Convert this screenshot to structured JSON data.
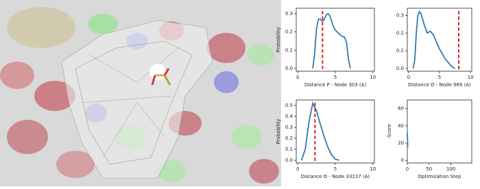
{
  "chart_data": [
    {
      "type": "line",
      "xlabel": "Distance P - Node 303 (A)",
      "ylabel": "Probability",
      "color": "#2f7bb0",
      "reference_x": 3.3,
      "reference_color": "#d62728",
      "x": [
        2.0,
        2.25,
        2.5,
        2.75,
        3.0,
        3.25,
        3.5,
        3.75,
        4.0,
        4.25,
        4.5,
        4.75,
        5.0,
        5.25,
        5.5,
        5.75,
        6.0,
        6.25,
        6.5,
        6.75,
        7.0
      ],
      "values": [
        0.0,
        0.08,
        0.22,
        0.27,
        0.27,
        0.26,
        0.265,
        0.29,
        0.3,
        0.29,
        0.26,
        0.23,
        0.21,
        0.2,
        0.19,
        0.18,
        0.175,
        0.17,
        0.14,
        0.05,
        0.0
      ],
      "xlim": [
        -0.2,
        10.2
      ],
      "xticks": [
        0,
        5,
        10
      ],
      "ylim": [
        -0.015,
        0.33
      ],
      "yticks": [
        {
          "value": 0,
          "label": "0.0"
        },
        0.1,
        0.2,
        0.3
      ]
    },
    {
      "type": "line",
      "xlabel": "Distance O - Node 969 (A)",
      "ylabel": null,
      "color": "#2f7bb0",
      "reference_x": 8.1,
      "reference_color": "#d62728",
      "x": [
        0.75,
        1.0,
        1.25,
        1.5,
        1.75,
        2.0,
        2.5,
        3.0,
        3.5,
        4.0,
        4.5,
        5.0,
        5.5,
        6.0,
        6.5,
        7.0,
        7.5
      ],
      "values": [
        0.0,
        0.05,
        0.2,
        0.3,
        0.32,
        0.31,
        0.25,
        0.2,
        0.21,
        0.19,
        0.15,
        0.11,
        0.08,
        0.05,
        0.03,
        0.01,
        0.0
      ],
      "xlim": [
        -0.2,
        10.2
      ],
      "xticks": [
        0,
        5,
        10
      ],
      "ylim": [
        -0.015,
        0.34
      ],
      "yticks": [
        {
          "value": 0,
          "label": "0.0"
        },
        0.1,
        0.2,
        0.3
      ]
    },
    {
      "type": "line",
      "xlabel": "Distance O - Node 33237 (A)",
      "ylabel": "Probability",
      "color": "#2f7bb0",
      "reference_x": 2.3,
      "reference_color": "#d62728",
      "x": [
        0.5,
        1.0,
        1.5,
        2.0,
        2.5,
        3.0,
        3.5,
        4.0,
        4.5,
        5.0,
        5.5
      ],
      "values": [
        0.0,
        0.1,
        0.35,
        0.52,
        0.45,
        0.33,
        0.22,
        0.12,
        0.05,
        0.01,
        0.0
      ],
      "xlim": [
        -0.2,
        10.2
      ],
      "xticks": [
        0,
        5,
        10
      ],
      "ylim": [
        -0.025,
        0.55
      ],
      "yticks": [
        {
          "value": 0,
          "label": "0.0"
        },
        0.1,
        0.2,
        0.3,
        0.4,
        0.5
      ]
    },
    {
      "type": "line",
      "xlabel": "Optimization Step",
      "ylabel": "-Score",
      "color": "#2f7bb0",
      "x": [
        0,
        1
      ],
      "values": [
        32,
        15
      ],
      "xlim": [
        0,
        148
      ],
      "xticks": [
        0,
        50,
        100
      ],
      "ylim": [
        -3,
        70
      ],
      "yticks": [
        0,
        20,
        40,
        60
      ]
    }
  ]
}
